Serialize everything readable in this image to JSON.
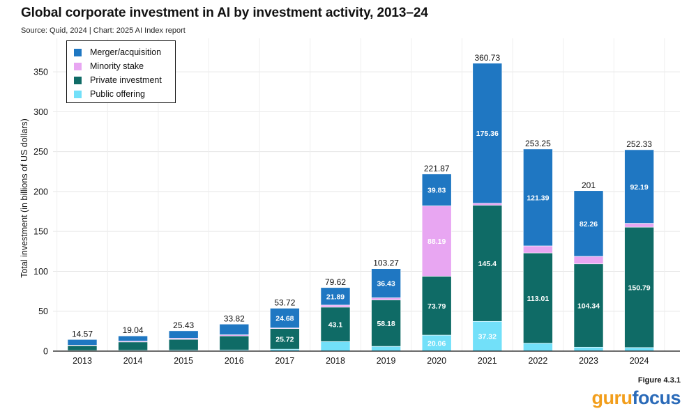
{
  "header": {
    "title": "Global corporate investment in AI by investment activity, 2013–24",
    "subtitle": "Source: Quid, 2024 | Chart: 2025 AI Index report"
  },
  "footer": {
    "figure_label": "Figure 4.3.1",
    "logo_part1": "guru",
    "logo_part2": "focus"
  },
  "colors": {
    "merger": "#1f77c2",
    "minority": "#e8a6f2",
    "private": "#0f6b66",
    "public": "#72e0f9"
  },
  "chart_data": {
    "type": "bar",
    "stacked": true,
    "title": "Global corporate investment in AI by investment activity, 2013–24",
    "xlabel": "",
    "ylabel": "Total investment (in billions of US dollars)",
    "ylim": [
      0,
      380
    ],
    "yticks": [
      0,
      50,
      100,
      150,
      200,
      250,
      300,
      350
    ],
    "legend_position": "top-left",
    "categories": [
      "2013",
      "2014",
      "2015",
      "2016",
      "2017",
      "2018",
      "2019",
      "2020",
      "2021",
      "2022",
      "2023",
      "2024"
    ],
    "series": [
      {
        "name": "Public offering",
        "color": "#72e0f9",
        "values": [
          0.8,
          1.0,
          1.2,
          1.5,
          2.5,
          12.0,
          6.0,
          20.06,
          37.32,
          10.0,
          5.0,
          4.5
        ],
        "labels": [
          "",
          "",
          "",
          "",
          "",
          "",
          "",
          "20.06",
          "37.32",
          "",
          "",
          ""
        ]
      },
      {
        "name": "Private investment",
        "color": "#0f6b66",
        "values": [
          6.0,
          10.5,
          13.5,
          17.5,
          25.72,
          43.1,
          58.18,
          73.79,
          145.4,
          113.01,
          104.34,
          150.79
        ],
        "labels": [
          "",
          "",
          "",
          "",
          "25.72",
          "43.1",
          "58.18",
          "73.79",
          "145.4",
          "113.01",
          "104.34",
          "150.79"
        ]
      },
      {
        "name": "Minority stake",
        "color": "#e8a6f2",
        "values": [
          0.8,
          1.0,
          1.5,
          1.5,
          0.82,
          2.63,
          2.66,
          88.19,
          2.65,
          8.85,
          9.4,
          4.85
        ],
        "labels": [
          "",
          "",
          "",
          "",
          "",
          "",
          "",
          "88.19",
          "",
          "",
          "",
          ""
        ]
      },
      {
        "name": "Merger/acquisition",
        "color": "#1f77c2",
        "values": [
          6.97,
          6.54,
          9.23,
          13.32,
          24.68,
          21.89,
          36.43,
          39.83,
          175.36,
          121.39,
          82.26,
          92.19
        ],
        "labels": [
          "",
          "",
          "",
          "",
          "24.68",
          "21.89",
          "36.43",
          "39.83",
          "175.36",
          "121.39",
          "82.26",
          "92.19"
        ]
      }
    ],
    "totals": [
      "14.57",
      "19.04",
      "25.43",
      "33.82",
      "53.72",
      "79.62",
      "103.27",
      "221.87",
      "360.73",
      "253.25",
      "201",
      "252.33"
    ],
    "legend": [
      "Merger/acquisition",
      "Minority stake",
      "Private investment",
      "Public offering"
    ]
  }
}
